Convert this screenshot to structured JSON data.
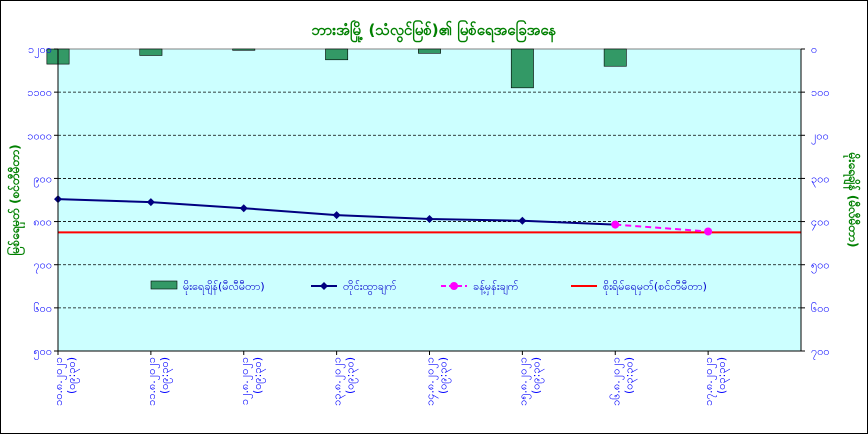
{
  "chart_data": {
    "type": "bar+line",
    "title": "ဘားအံမြို့ (သံလွင်မြစ်)၏ မြစ်ရေအခြေအနေ",
    "ylabel_left": "မြစ်ရေမှတ် (စင်တီမီတာ)",
    "ylabel_right": "မိုးရေချိန် (မီလီမီတာ)",
    "categories": [
      "၁၀.၈.၂၀၂၁ (၀၉:၃၀)",
      "၁၁.၈.၂၀၂၁ (၀၉:၃၀)",
      "၁၂.၈.၂၀၂၁ (၀၉:၃၀)",
      "၁၃.၈.၂၀၂၁ (၀၉:၃၀)",
      "၁၄.၈.၂၀၂၁ (၀၉:၃၀)",
      "၁၅.၈.၂၀၂၁ (၀၉:၃၀)",
      "၁၆.၈.၂၀၂၁ (၀၃:၃၀)",
      "၁၇.၈.၂၀၂၁ (၀၃:၃၀)"
    ],
    "y_left": {
      "min": 500,
      "max": 1200,
      "step": 100,
      "ticks": [
        "၅၀၀",
        "၆၀၀",
        "၇၀၀",
        "၈၀၀",
        "၉၀၀",
        "၁၀၀၀",
        "၁၁၀၀",
        "၁၂၀၀"
      ]
    },
    "y_right": {
      "min": 0,
      "max": 700,
      "step": 100,
      "inverted": true,
      "ticks": [
        "၀",
        "၁၀၀",
        "၂၀၀",
        "၃၀၀",
        "၄၀၀",
        "၅၀၀",
        "၆၀၀",
        "၇၀၀"
      ]
    },
    "grid": true,
    "legend_position": "middle",
    "series": [
      {
        "name": "မိုးရေချိန်(မီလီမီတာ)",
        "type": "bar",
        "axis": "right",
        "color": "#339966",
        "values": [
          35,
          15,
          3,
          25,
          10,
          90,
          40,
          null
        ]
      },
      {
        "name": "တိုင်းထွာချက်",
        "type": "line",
        "axis": "left",
        "color": "#000080",
        "marker": "diamond",
        "values": [
          852,
          845,
          831,
          815,
          806,
          802,
          793,
          null
        ]
      },
      {
        "name": "ခန့်မှန်းချက်",
        "type": "line",
        "axis": "left",
        "dashed": true,
        "color": "#ff00ff",
        "marker": "circle",
        "values": [
          null,
          null,
          null,
          null,
          null,
          null,
          793,
          777
        ]
      },
      {
        "name": "စိုးရိမ်ရေမှတ်(စင်တီမီတာ)",
        "type": "hline",
        "axis": "left",
        "color": "#ff0000",
        "value": 775
      }
    ]
  }
}
